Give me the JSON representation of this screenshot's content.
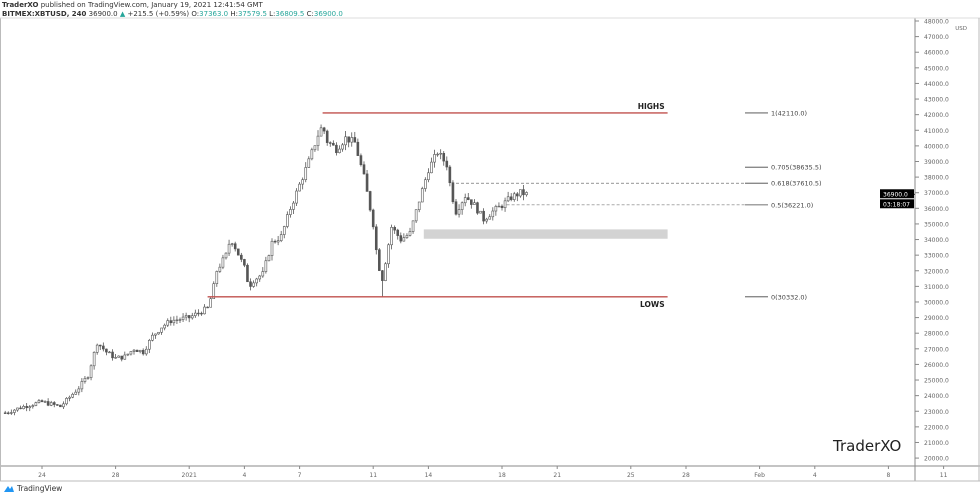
{
  "header": {
    "author": "TraderXO",
    "published": "published on TradingView.com, January 19, 2021 12:41:54 GMT",
    "symbol": "BITMEX:XBTUSD, 240",
    "last": "36900.0",
    "change": "+215.5 (+0.59%)",
    "o_label": "O:",
    "o": "37363.0",
    "h_label": "H:",
    "h": "37579.5",
    "l_label": "L:",
    "l": "36809.5",
    "c_label": "C:",
    "c": "36900.0"
  },
  "footer": {
    "brand": "TradingView"
  },
  "watermark": "TraderXO",
  "colors": {
    "candle": "#555555",
    "level_line": "#c0504d",
    "zone": "#d3d3d3",
    "price_tag": "#000000",
    "up": "#26a69a"
  },
  "chart_data": {
    "type": "candlestick",
    "timeframe": "240",
    "currency": "USD",
    "ylim": [
      20000,
      48000
    ],
    "y_ticks": [
      "20000.0",
      "21000.0",
      "22000.0",
      "23000.0",
      "24000.0",
      "25000.0",
      "26000.0",
      "27000.0",
      "28000.0",
      "29000.0",
      "30000.0",
      "31000.0",
      "32000.0",
      "33000.0",
      "34000.0",
      "35000.0",
      "36000.0",
      "37000.0",
      "38000.0",
      "39000.0",
      "40000.0",
      "41000.0",
      "42000.0",
      "43000.0",
      "44000.0",
      "45000.0",
      "46000.0",
      "47000.0",
      "48000.0"
    ],
    "x_ticks": [
      {
        "label": "24",
        "date": "2020-12-24"
      },
      {
        "label": "28",
        "date": "2020-12-28"
      },
      {
        "label": "2021",
        "date": "2021-01-01"
      },
      {
        "label": "4",
        "date": "2021-01-04"
      },
      {
        "label": "7",
        "date": "2021-01-07"
      },
      {
        "label": "11",
        "date": "2021-01-11"
      },
      {
        "label": "14",
        "date": "2021-01-14"
      },
      {
        "label": "18",
        "date": "2021-01-18"
      },
      {
        "label": "21",
        "date": "2021-01-21"
      },
      {
        "label": "25",
        "date": "2021-01-25"
      },
      {
        "label": "28",
        "date": "2021-01-28"
      },
      {
        "label": "Feb",
        "date": "2021-02-01"
      },
      {
        "label": "4",
        "date": "2021-02-04"
      },
      {
        "label": "8",
        "date": "2021-02-08"
      },
      {
        "label": "11",
        "date": "2021-02-11"
      }
    ],
    "approx_close_path": [
      [
        "2020-12-22T00:00",
        22900
      ],
      [
        "2020-12-23T00:00",
        23300
      ],
      [
        "2020-12-24T00:00",
        23600
      ],
      [
        "2020-12-25T00:00",
        23300
      ],
      [
        "2020-12-26T00:00",
        24500
      ],
      [
        "2020-12-26T12:00",
        25300
      ],
      [
        "2020-12-27T00:00",
        27400
      ],
      [
        "2020-12-27T12:00",
        26800
      ],
      [
        "2020-12-28T00:00",
        26400
      ],
      [
        "2020-12-28T12:00",
        26500
      ],
      [
        "2020-12-29T00:00",
        27000
      ],
      [
        "2020-12-29T12:00",
        26800
      ],
      [
        "2020-12-30T00:00",
        27800
      ],
      [
        "2020-12-30T12:00",
        28400
      ],
      [
        "2020-12-31T00:00",
        28800
      ],
      [
        "2020-12-31T12:00",
        28900
      ],
      [
        "2021-01-01T00:00",
        29000
      ],
      [
        "2021-01-01T12:00",
        29300
      ],
      [
        "2021-01-02T00:00",
        29600
      ],
      [
        "2021-01-02T06:00",
        30500
      ],
      [
        "2021-01-02T12:00",
        32000
      ],
      [
        "2021-01-03T00:00",
        33000
      ],
      [
        "2021-01-03T06:00",
        34100
      ],
      [
        "2021-01-03T12:00",
        33500
      ],
      [
        "2021-01-04T00:00",
        32200
      ],
      [
        "2021-01-04T06:00",
        31000
      ],
      [
        "2021-01-04T12:00",
        31400
      ],
      [
        "2021-01-05T00:00",
        31800
      ],
      [
        "2021-01-05T12:00",
        33800
      ],
      [
        "2021-01-06T00:00",
        34200
      ],
      [
        "2021-01-06T12:00",
        36000
      ],
      [
        "2021-01-07T00:00",
        37500
      ],
      [
        "2021-01-07T12:00",
        39000
      ],
      [
        "2021-01-08T00:00",
        40700
      ],
      [
        "2021-01-08T06:00",
        41300
      ],
      [
        "2021-01-08T12:00",
        40300
      ],
      [
        "2021-01-09T00:00",
        39800
      ],
      [
        "2021-01-09T12:00",
        40500
      ],
      [
        "2021-01-10T00:00",
        40200
      ],
      [
        "2021-01-10T12:00",
        38000
      ],
      [
        "2021-01-11T00:00",
        35000
      ],
      [
        "2021-01-11T06:00",
        32500
      ],
      [
        "2021-01-11T12:00",
        31500
      ],
      [
        "2021-01-12T00:00",
        34800
      ],
      [
        "2021-01-12T12:00",
        34000
      ],
      [
        "2021-01-13T00:00",
        34400
      ],
      [
        "2021-01-13T12:00",
        36500
      ],
      [
        "2021-01-14T00:00",
        38500
      ],
      [
        "2021-01-14T12:00",
        39600
      ],
      [
        "2021-01-15T00:00",
        38800
      ],
      [
        "2021-01-15T06:00",
        37000
      ],
      [
        "2021-01-15T12:00",
        35800
      ],
      [
        "2021-01-16T00:00",
        36800
      ],
      [
        "2021-01-16T12:00",
        36200
      ],
      [
        "2021-01-17T00:00",
        35300
      ],
      [
        "2021-01-17T12:00",
        35800
      ],
      [
        "2021-01-18T00:00",
        36200
      ],
      [
        "2021-01-18T12:00",
        36700
      ],
      [
        "2021-01-19T00:00",
        37000
      ],
      [
        "2021-01-19T08:00",
        36900
      ]
    ],
    "wick_extremes": [
      {
        "date": "2021-01-04T06:00",
        "low": 27700
      },
      {
        "date": "2021-01-08T06:00",
        "high": 42110
      },
      {
        "date": "2021-01-11T12:00",
        "low": 30332
      }
    ],
    "annotations": {
      "highs": {
        "label": "HIGHS",
        "price": 42110,
        "from": "2021-01-08T06:00",
        "to": "2021-01-27T00:00"
      },
      "lows": {
        "label": "LOWS",
        "price": 30332,
        "from": "2021-01-02T00:00",
        "to": "2021-01-27T00:00"
      },
      "zone": {
        "from": "2021-01-13T18:00",
        "to": "2021-01-27T00:00",
        "low": 34050,
        "high": 34650
      },
      "fib_levels": [
        {
          "label": "1(42110.0)",
          "price": 42110
        },
        {
          "label": "0.705(38635.5)",
          "price": 38635.5
        },
        {
          "label": "0.618(37610.5)",
          "price": 37610.5,
          "dashed_from": "2021-01-15T12:00"
        },
        {
          "label": "0.5(36221.0)",
          "price": 36221,
          "dashed_from": "2021-01-18T06:00"
        },
        {
          "label": "0(30332.0)",
          "price": 30332
        }
      ],
      "last_price_tag": "36900.0",
      "countdown": "03:18:07"
    }
  }
}
